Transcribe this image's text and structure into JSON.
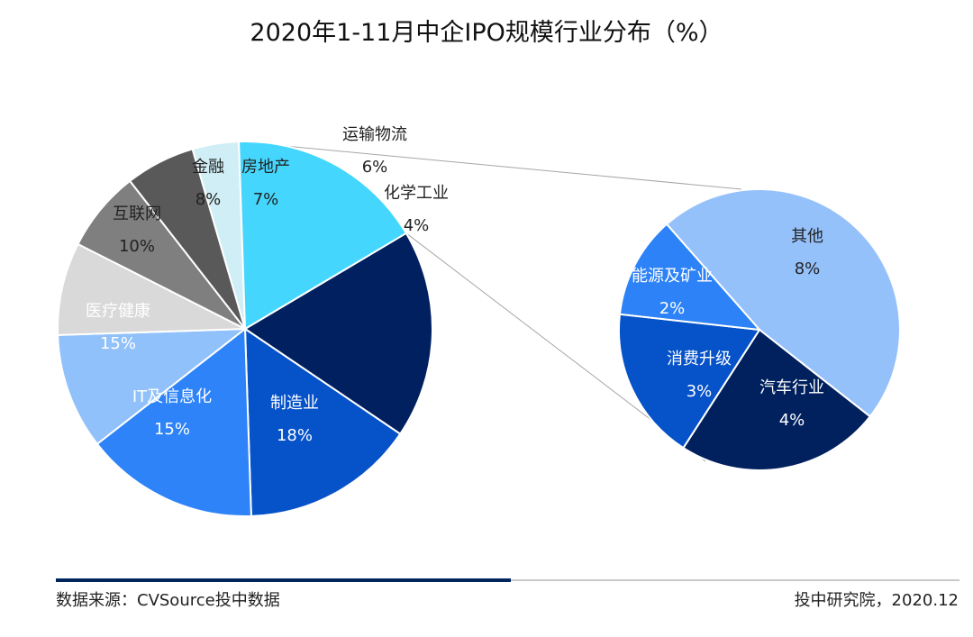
{
  "chart_data": [
    {
      "type": "pie",
      "title": "2020年1-11月中企IPO规模行业分布（%）",
      "unit": "%",
      "slices": [
        {
          "label": "制造业",
          "value": 18,
          "value_label": "18%",
          "color": "#002060"
        },
        {
          "label": "IT及信息化",
          "value": 15,
          "value_label": "15%",
          "color": "#0552c9"
        },
        {
          "label": "医疗健康",
          "value": 15,
          "value_label": "15%",
          "color": "#2d83f7"
        },
        {
          "label": "互联网",
          "value": 10,
          "value_label": "10%",
          "color": "#91c1fa"
        },
        {
          "label": "金融",
          "value": 8,
          "value_label": "8%",
          "color": "#d9d9d9"
        },
        {
          "label": "房地产",
          "value": 7,
          "value_label": "7%",
          "color": "#7f7f7f"
        },
        {
          "label": "运输物流",
          "value": 6,
          "value_label": "6%",
          "color": "#595959"
        },
        {
          "label": "化学工业",
          "value": 4,
          "value_label": "4%",
          "color": "#d0eef5"
        },
        {
          "label": "",
          "value": 17,
          "value_label": "",
          "color": "#44d6fd"
        }
      ]
    },
    {
      "type": "pie",
      "slices": [
        {
          "label": "其他",
          "value": 8,
          "value_label": "8%",
          "color": "#95c1fb"
        },
        {
          "label": "汽车行业",
          "value": 4,
          "value_label": "4%",
          "color": "#00215e"
        },
        {
          "label": "消费升级",
          "value": 3,
          "value_label": "3%",
          "color": "#0552c9"
        },
        {
          "label": "能源及矿业",
          "value": 2,
          "value_label": "2%",
          "color": "#2c82f6"
        }
      ]
    }
  ],
  "footer": {
    "source": "数据来源：CVSource投中数据",
    "credit": "投中研究院，2020.12"
  }
}
